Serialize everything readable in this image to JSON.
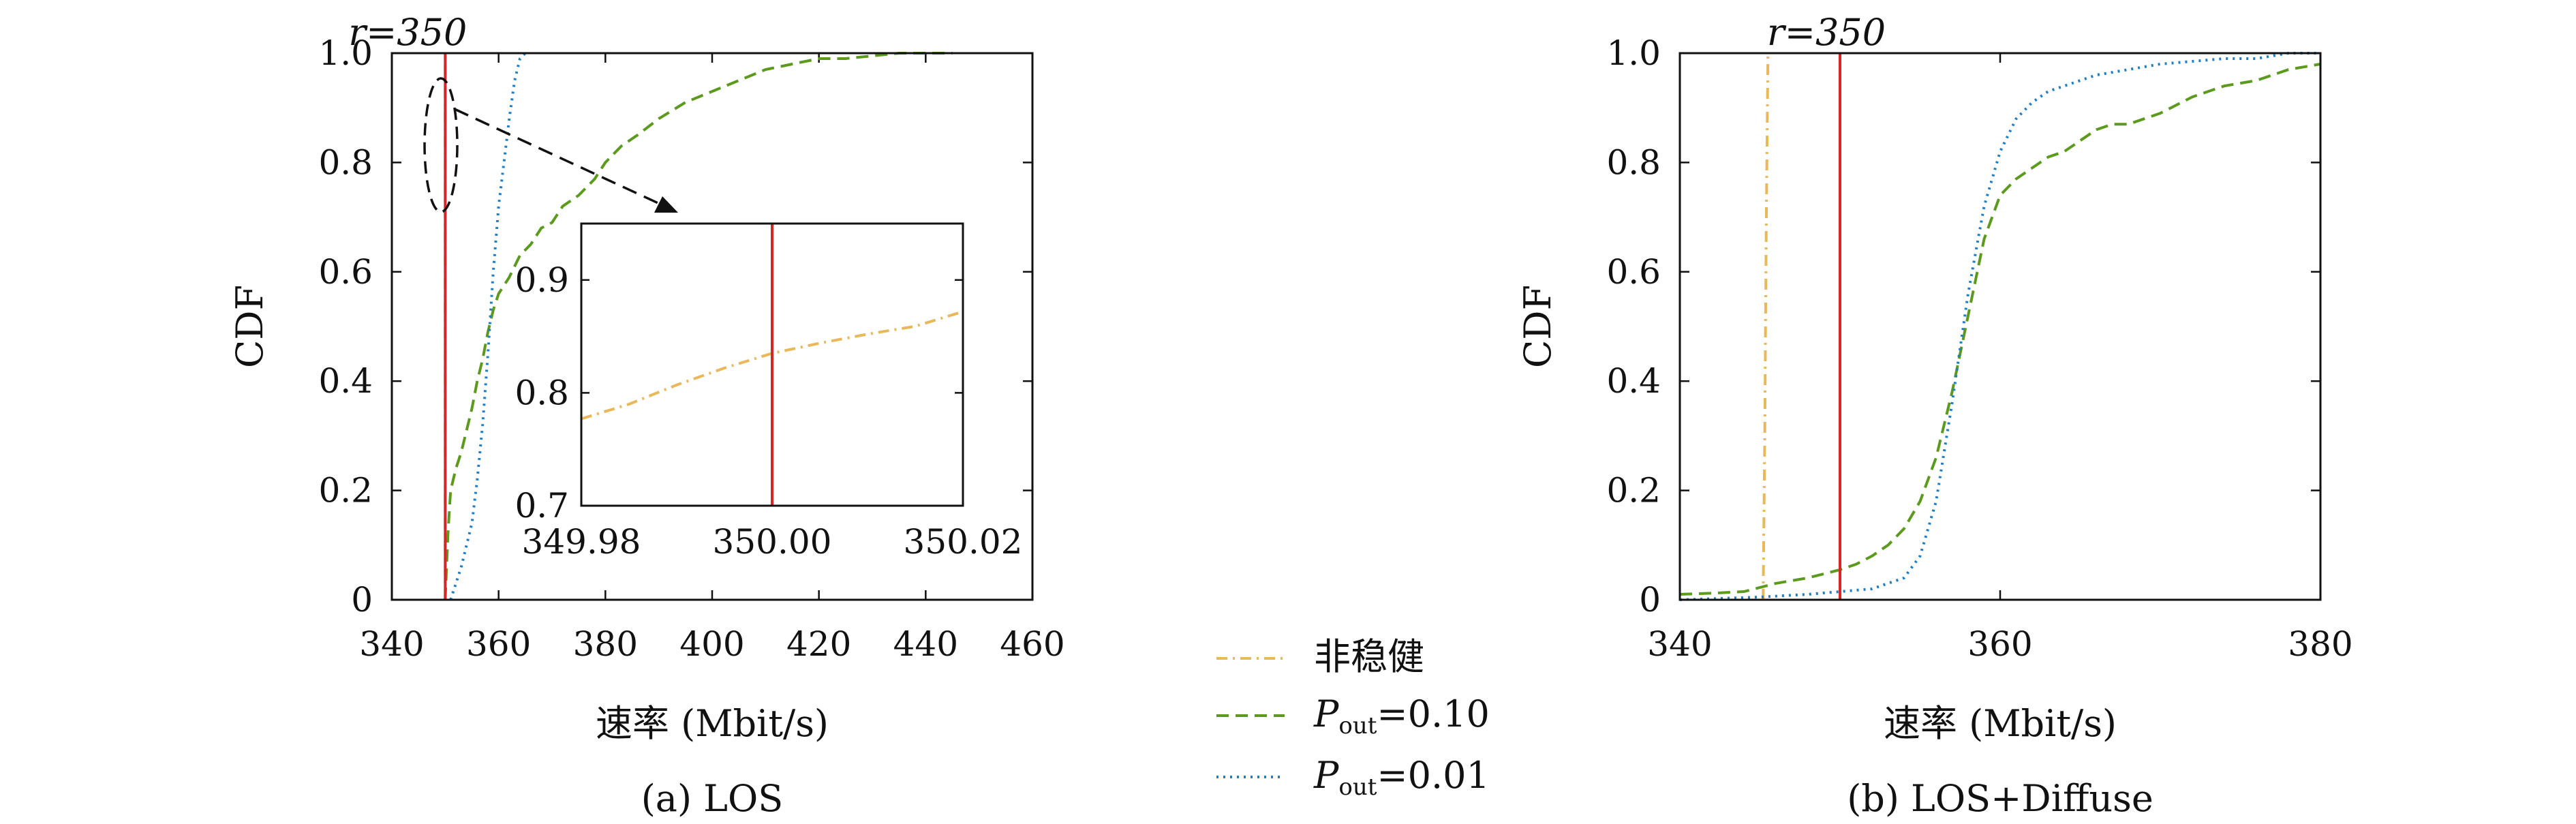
{
  "legend": {
    "entries": [
      {
        "label": "非稳健",
        "color": "#e8b85a",
        "dash": "dashdot"
      },
      {
        "label_main": "P",
        "label_sub": "out",
        "label_rest": "=0.10",
        "color": "#5c9a1e",
        "dash": "dashed"
      },
      {
        "label_main": "P",
        "label_sub": "out",
        "label_rest": "=0.01",
        "color": "#1f7fc4",
        "dash": "dotted"
      }
    ]
  },
  "chart_data": [
    {
      "type": "line",
      "caption": "(a) LOS",
      "xlabel": "速率 (Mbit/s)",
      "ylabel": "CDF",
      "xlim": [
        340,
        460
      ],
      "ylim": [
        0,
        1.0
      ],
      "xticks": [
        "340",
        "360",
        "380",
        "400",
        "420",
        "440",
        "460"
      ],
      "yticks": [
        "0",
        "0.2",
        "0.4",
        "0.6",
        "0.8",
        "1.0"
      ],
      "vline": {
        "x": 350,
        "label": "r=350",
        "color": "#d62728"
      },
      "series": [
        {
          "name": "非稳健",
          "color": "#e8b85a",
          "dash": "dashdot",
          "x": [
            350,
            350,
            350
          ],
          "y": [
            0,
            0.5,
            1.0
          ]
        },
        {
          "name": "Pout=0.10",
          "color": "#5c9a1e",
          "dash": "dashed",
          "x": [
            350,
            350.5,
            351,
            352,
            353,
            354,
            355,
            356,
            357,
            358,
            359,
            360,
            362,
            364,
            366,
            368,
            370,
            372,
            375,
            378,
            380,
            383,
            386,
            390,
            395,
            400,
            405,
            410,
            415,
            420,
            425,
            430,
            435,
            440,
            445
          ],
          "y": [
            0,
            0.12,
            0.2,
            0.24,
            0.27,
            0.31,
            0.35,
            0.4,
            0.44,
            0.49,
            0.53,
            0.56,
            0.59,
            0.63,
            0.65,
            0.68,
            0.69,
            0.72,
            0.74,
            0.77,
            0.8,
            0.83,
            0.85,
            0.88,
            0.91,
            0.93,
            0.95,
            0.97,
            0.98,
            0.99,
            0.99,
            0.995,
            1.0,
            1.0,
            1.0
          ]
        },
        {
          "name": "Pout=0.01",
          "color": "#1f7fc4",
          "dash": "dotted",
          "x": [
            351,
            353,
            355,
            356,
            357,
            358,
            359,
            360,
            361,
            362,
            363,
            364,
            365
          ],
          "y": [
            0,
            0.06,
            0.14,
            0.22,
            0.32,
            0.45,
            0.6,
            0.72,
            0.8,
            0.88,
            0.95,
            0.99,
            1.0
          ]
        }
      ],
      "inset": {
        "xlim": [
          349.98,
          350.02
        ],
        "ylim": [
          0.7,
          0.95
        ],
        "xticks": [
          "349.98",
          "350.00",
          "350.02"
        ],
        "yticks": [
          "0.7",
          "0.8",
          "0.9"
        ],
        "series": {
          "name": "非稳健",
          "color": "#e8b85a",
          "dash": "dashdot",
          "x": [
            349.98,
            349.985,
            349.99,
            349.995,
            350.0,
            350.005,
            350.01,
            350.015,
            350.02
          ],
          "y": [
            0.777,
            0.79,
            0.807,
            0.822,
            0.835,
            0.844,
            0.852,
            0.859,
            0.872
          ]
        }
      }
    },
    {
      "type": "line",
      "caption": "(b) LOS+Diffuse",
      "xlabel": "速率 (Mbit/s)",
      "ylabel": "CDF",
      "xlim": [
        340,
        380
      ],
      "ylim": [
        0,
        1.0
      ],
      "xticks": [
        "340",
        "360",
        "380"
      ],
      "yticks": [
        "0",
        "0.2",
        "0.4",
        "0.6",
        "0.8",
        "1.0"
      ],
      "vline": {
        "x": 350,
        "label": "r=350",
        "color": "#d62728"
      },
      "series": [
        {
          "name": "非稳健",
          "color": "#e8b85a",
          "dash": "dashdot",
          "x": [
            345.2,
            345.3,
            345.4,
            345.5
          ],
          "y": [
            0,
            0.3,
            0.7,
            1.0
          ]
        },
        {
          "name": "Pout=0.10",
          "color": "#5c9a1e",
          "dash": "dashed",
          "x": [
            340,
            342,
            344,
            346,
            348,
            350,
            351,
            352,
            353,
            354,
            355,
            356,
            357,
            358,
            359,
            360,
            361,
            362,
            363,
            364,
            365,
            366,
            367,
            368,
            369,
            370,
            372,
            374,
            376,
            378,
            380
          ],
          "y": [
            0.01,
            0.012,
            0.015,
            0.03,
            0.04,
            0.055,
            0.065,
            0.08,
            0.1,
            0.13,
            0.18,
            0.26,
            0.38,
            0.52,
            0.66,
            0.74,
            0.77,
            0.79,
            0.81,
            0.82,
            0.84,
            0.86,
            0.87,
            0.87,
            0.88,
            0.89,
            0.92,
            0.94,
            0.95,
            0.97,
            0.98
          ]
        },
        {
          "name": "Pout=0.01",
          "color": "#1f7fc4",
          "dash": "dotted",
          "x": [
            340,
            345,
            348,
            350,
            352,
            353,
            354,
            355,
            356,
            357,
            358,
            359,
            360,
            361,
            362,
            363,
            364,
            366,
            368,
            370,
            372,
            374,
            376,
            378,
            380
          ],
          "y": [
            0,
            0.005,
            0.01,
            0.015,
            0.02,
            0.03,
            0.04,
            0.08,
            0.18,
            0.36,
            0.56,
            0.72,
            0.82,
            0.88,
            0.91,
            0.93,
            0.94,
            0.96,
            0.97,
            0.98,
            0.985,
            0.99,
            0.99,
            1.0,
            1.0
          ]
        }
      ]
    }
  ]
}
